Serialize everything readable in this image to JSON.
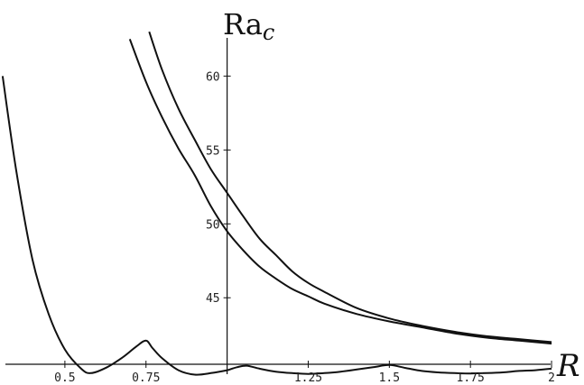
{
  "chart_data": {
    "type": "line",
    "title": "",
    "xlabel": "R",
    "ylabel_main": "Ra",
    "ylabel_sub": "c",
    "xlim": [
      0.3,
      2.1
    ],
    "ylim": [
      40.5,
      63.5
    ],
    "x_axis_at_y": 40.5,
    "y_axis_at_x": 1.0,
    "x_ticks": [
      0.5,
      0.75,
      1.25,
      1.5,
      1.75,
      2
    ],
    "x_tick_labels": [
      "0.5",
      "0.75",
      "1.25",
      "1.5",
      "1.75",
      "2"
    ],
    "y_ticks": [
      45,
      50,
      55,
      60
    ],
    "y_tick_labels": [
      "45",
      "50",
      "55",
      "60"
    ],
    "grid": false,
    "series": [
      {
        "x": [
          0.308,
          0.35,
          0.4,
          0.45,
          0.5,
          0.55,
          0.58,
          0.63,
          0.68,
          0.72,
          0.75,
          0.77,
          0.8,
          0.85,
          0.9,
          0.95,
          1.0,
          1.03,
          1.06,
          1.1,
          1.15,
          1.2,
          1.25,
          1.3,
          1.35,
          1.4,
          1.45,
          1.5,
          1.55,
          1.6,
          1.65,
          1.7,
          1.75,
          1.8,
          1.85,
          1.9,
          1.95,
          2.0
        ],
        "y": [
          60.0,
          53.6,
          47.6,
          43.9,
          41.5,
          40.2,
          39.9,
          40.3,
          41.0,
          41.7,
          42.1,
          41.6,
          40.9,
          40.1,
          39.8,
          39.9,
          40.1,
          40.3,
          40.4,
          40.2,
          40.0,
          39.9,
          39.85,
          39.9,
          40.0,
          40.15,
          40.3,
          40.45,
          40.25,
          40.05,
          39.95,
          39.9,
          39.88,
          39.9,
          39.95,
          40.05,
          40.1,
          40.2
        ]
      },
      {
        "x": [
          0.7,
          0.75,
          0.8,
          0.85,
          0.9,
          0.95,
          1.0,
          1.05,
          1.1,
          1.15,
          1.2,
          1.25,
          1.3,
          1.4,
          1.5,
          1.6,
          1.7,
          1.8,
          1.9,
          2.0
        ],
        "y": [
          62.5,
          59.6,
          57.2,
          55.1,
          53.3,
          51.2,
          49.5,
          48.2,
          47.1,
          46.3,
          45.6,
          45.1,
          44.6,
          43.9,
          43.4,
          43.0,
          42.6,
          42.3,
          42.1,
          41.9
        ]
      },
      {
        "x": [
          0.76,
          0.8,
          0.85,
          0.9,
          0.95,
          1.0,
          1.05,
          1.1,
          1.15,
          1.2,
          1.25,
          1.3,
          1.4,
          1.5,
          1.6,
          1.7,
          1.8,
          1.9,
          2.0
        ],
        "y": [
          63.0,
          60.4,
          57.8,
          55.7,
          53.7,
          52.1,
          50.5,
          49.0,
          47.9,
          46.8,
          46.0,
          45.4,
          44.3,
          43.6,
          43.1,
          42.7,
          42.4,
          42.2,
          42.0
        ]
      }
    ]
  }
}
